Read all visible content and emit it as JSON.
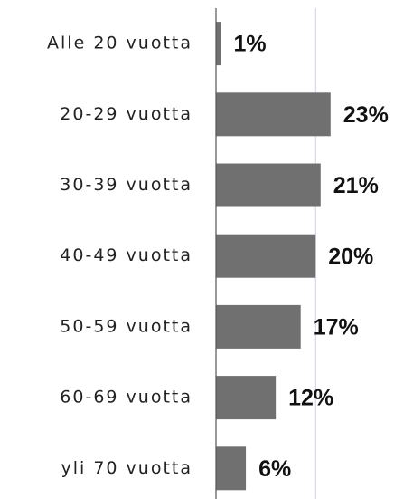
{
  "chart_data": {
    "type": "bar",
    "orientation": "horizontal",
    "categories": [
      "Alle 20 vuotta",
      "20-29 vuotta",
      "30-39 vuotta",
      "40-49 vuotta",
      "50-59 vuotta",
      "60-69 vuotta",
      "yli 70 vuotta"
    ],
    "values": [
      1,
      23,
      21,
      20,
      17,
      12,
      6
    ],
    "value_labels": [
      "1%",
      "23%",
      "21%",
      "20%",
      "17%",
      "12%",
      "6%"
    ],
    "color": "#707070",
    "xlim": [
      0,
      39
    ],
    "xticks": [
      20
    ],
    "grid": true
  }
}
